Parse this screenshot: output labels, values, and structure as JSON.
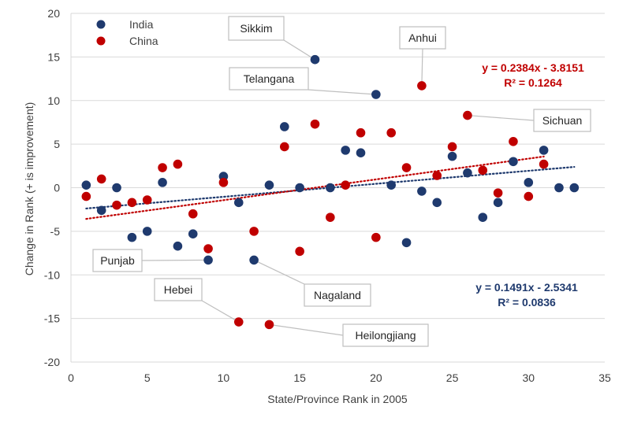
{
  "chart_data": {
    "type": "scatter",
    "xlabel": "State/Province  Rank  in 2005",
    "ylabel": "Change in Rank (+ is improvement)",
    "xlim": [
      0,
      35
    ],
    "ylim": [
      -20,
      20
    ],
    "x_ticks": [
      0,
      5,
      10,
      15,
      20,
      25,
      30,
      35
    ],
    "y_ticks": [
      -20,
      -15,
      -10,
      -5,
      0,
      5,
      10,
      15,
      20
    ],
    "grid": "horizontal",
    "legend": "top-left",
    "series": [
      {
        "name": "India",
        "color": "#1f3a6e",
        "trendline": {
          "slope": 0.1491,
          "intercept": -2.5341,
          "equation": "y = 0.1491x - 2.5341",
          "r2": "R² = 0.0836",
          "x_range": [
            1,
            33
          ]
        },
        "points": [
          [
            1,
            0.3
          ],
          [
            2,
            -2.6
          ],
          [
            3,
            0
          ],
          [
            4,
            -5.7
          ],
          [
            5,
            -5
          ],
          [
            6,
            0.6
          ],
          [
            7,
            -6.7
          ],
          [
            8,
            -5.3
          ],
          [
            9,
            -8.3
          ],
          [
            10,
            1.3
          ],
          [
            11,
            -1.7
          ],
          [
            12,
            -8.3
          ],
          [
            13,
            0.3
          ],
          [
            14,
            7
          ],
          [
            15,
            0
          ],
          [
            16,
            14.7
          ],
          [
            17,
            0
          ],
          [
            18,
            4.3
          ],
          [
            19,
            4
          ],
          [
            20,
            10.7
          ],
          [
            21,
            0.3
          ],
          [
            22,
            -6.3
          ],
          [
            23,
            -0.4
          ],
          [
            24,
            -1.7
          ],
          [
            25,
            3.6
          ],
          [
            26,
            1.7
          ],
          [
            27,
            -3.4
          ],
          [
            28,
            -1.7
          ],
          [
            29,
            3
          ],
          [
            30,
            0.6
          ],
          [
            31,
            4.3
          ],
          [
            32,
            0
          ],
          [
            33,
            0
          ]
        ]
      },
      {
        "name": "China",
        "color": "#c00000",
        "trendline": {
          "slope": 0.2384,
          "intercept": -3.8151,
          "equation": "y = 0.2384x - 3.8151",
          "r2": "R² = 0.1264",
          "x_range": [
            1,
            31
          ]
        },
        "points": [
          [
            1,
            -1
          ],
          [
            2,
            1
          ],
          [
            3,
            -2
          ],
          [
            4,
            -1.7
          ],
          [
            5,
            -1.4
          ],
          [
            6,
            2.3
          ],
          [
            7,
            2.7
          ],
          [
            8,
            -3
          ],
          [
            9,
            -7
          ],
          [
            10,
            0.6
          ],
          [
            11,
            -15.4
          ],
          [
            12,
            -5
          ],
          [
            13,
            -15.7
          ],
          [
            14,
            4.7
          ],
          [
            15,
            -7.3
          ],
          [
            16,
            7.3
          ],
          [
            17,
            -3.4
          ],
          [
            18,
            0.3
          ],
          [
            19,
            6.3
          ],
          [
            20,
            -5.7
          ],
          [
            21,
            6.3
          ],
          [
            22,
            2.3
          ],
          [
            23,
            11.7
          ],
          [
            24,
            1.4
          ],
          [
            25,
            4.7
          ],
          [
            26,
            8.3
          ],
          [
            27,
            2
          ],
          [
            28,
            -0.6
          ],
          [
            29,
            5.3
          ],
          [
            30,
            -1
          ],
          [
            31,
            2.7
          ]
        ]
      }
    ],
    "annotations": [
      {
        "label": "Sikkim",
        "x": 16,
        "y": 14.7
      },
      {
        "label": "Telangana",
        "x": 20,
        "y": 10.7
      },
      {
        "label": "Anhui",
        "x": 23,
        "y": 11.7
      },
      {
        "label": "Sichuan",
        "x": 26,
        "y": 8.3
      },
      {
        "label": "Punjab",
        "x": 9,
        "y": -8.3
      },
      {
        "label": "Nagaland",
        "x": 12,
        "y": -8.3
      },
      {
        "label": "Hebei",
        "x": 11,
        "y": -15.4
      },
      {
        "label": "Heilongjiang",
        "x": 13,
        "y": -15.7
      }
    ]
  }
}
